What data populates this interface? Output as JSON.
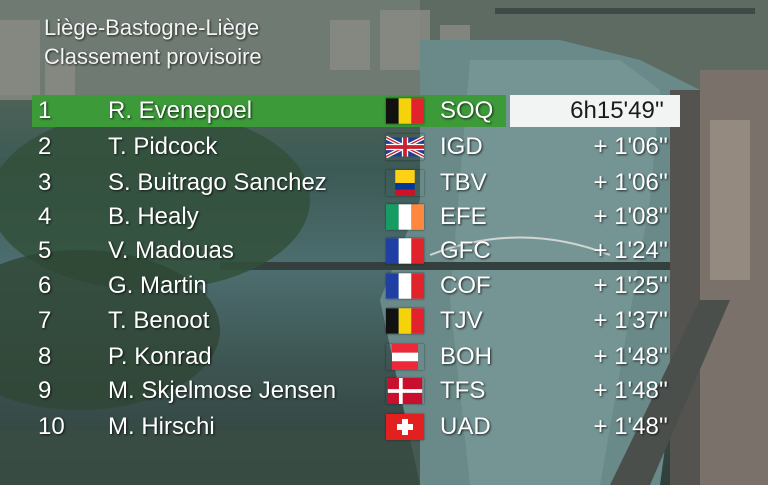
{
  "header": {
    "race": "Liège-Bastogne-Liège",
    "subtitle": "Classement provisoire"
  },
  "standings": [
    {
      "pos": "1",
      "name": "R. Evenepoel",
      "flag": "belgium-flag",
      "team": "SOQ",
      "gap": "6h15'49''"
    },
    {
      "pos": "2",
      "name": "T. Pidcock",
      "flag": "united-kingdom-flag",
      "team": "IGD",
      "gap": "+ 1'06''"
    },
    {
      "pos": "3",
      "name": "S. Buitrago Sanchez",
      "flag": "colombia-flag",
      "team": "TBV",
      "gap": "+ 1'06''"
    },
    {
      "pos": "4",
      "name": "B. Healy",
      "flag": "ireland-flag",
      "team": "EFE",
      "gap": "+ 1'08''"
    },
    {
      "pos": "5",
      "name": "V. Madouas",
      "flag": "france-flag",
      "team": "GFC",
      "gap": "+ 1'24''"
    },
    {
      "pos": "6",
      "name": "G. Martin",
      "flag": "france-flag",
      "team": "COF",
      "gap": "+ 1'25''"
    },
    {
      "pos": "7",
      "name": "T. Benoot",
      "flag": "belgium-flag",
      "team": "TJV",
      "gap": "+ 1'37''"
    },
    {
      "pos": "8",
      "name": "P. Konrad",
      "flag": "austria-flag",
      "team": "BOH",
      "gap": "+ 1'48''"
    },
    {
      "pos": "9",
      "name": "M. Skjelmose Jensen",
      "flag": "denmark-flag",
      "team": "TFS",
      "gap": "+ 1'48''"
    },
    {
      "pos": "10",
      "name": "M. Hirschi",
      "flag": "switzerland-flag",
      "team": "UAD",
      "gap": "+ 1'48''"
    }
  ],
  "colors": {
    "leader_bar": "#3c9a39",
    "leader_time_box": "#f1f4f3",
    "text": "#ffffff"
  }
}
